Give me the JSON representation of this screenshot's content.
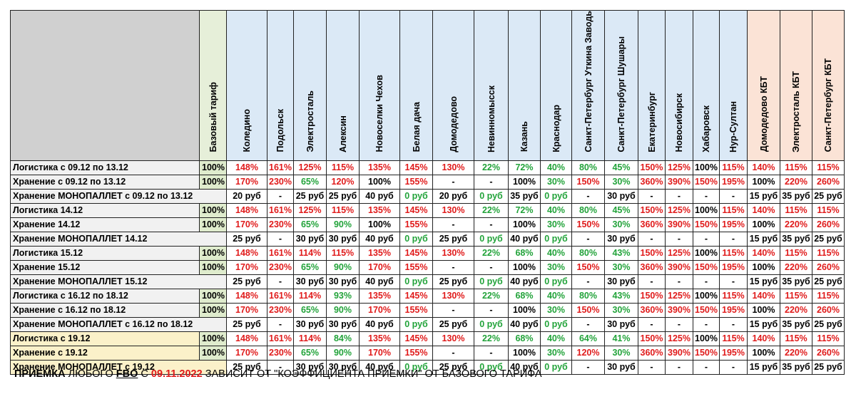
{
  "columns": [
    {
      "label": "Коледино",
      "group": "blue"
    },
    {
      "label": "Подольск",
      "group": "blue"
    },
    {
      "label": "Электросталь",
      "group": "blue"
    },
    {
      "label": "Алексин",
      "group": "blue"
    },
    {
      "label": "Новоселки Чехов",
      "group": "blue"
    },
    {
      "label": "Белая дача",
      "group": "blue"
    },
    {
      "label": "Домодедово",
      "group": "blue"
    },
    {
      "label": "Невинномысск",
      "group": "blue"
    },
    {
      "label": "Казань",
      "group": "blue"
    },
    {
      "label": "Краснодар",
      "group": "blue"
    },
    {
      "label": "Санкт-Петербург Уткина Заводь",
      "group": "blue"
    },
    {
      "label": "Санкт-Петербург Шушары",
      "group": "blue"
    },
    {
      "label": "Екатеринбург",
      "group": "blue"
    },
    {
      "label": "Новосибирск",
      "group": "blue"
    },
    {
      "label": "Хабаровск",
      "group": "blue"
    },
    {
      "label": "Нур-Султан",
      "group": "blue"
    },
    {
      "label": "Домодедово КБТ",
      "group": "peach"
    },
    {
      "label": "Электросталь КБТ",
      "group": "peach"
    },
    {
      "label": "Санкт-Петербург КБТ",
      "group": "peach"
    }
  ],
  "base_header": "Базовый тариф",
  "colors": {
    "red": "#e01b1b",
    "green": "#22a33a",
    "black": "#000000"
  },
  "rows": [
    {
      "label": "Логистика с 09.12 по 13.12",
      "base": "100%",
      "yellow": false,
      "cells": [
        [
          "148%",
          "r"
        ],
        [
          "161%",
          "r"
        ],
        [
          "125%",
          "r"
        ],
        [
          "115%",
          "r"
        ],
        [
          "135%",
          "r"
        ],
        [
          "145%",
          "r"
        ],
        [
          "130%",
          "r"
        ],
        [
          "22%",
          "g"
        ],
        [
          "72%",
          "g"
        ],
        [
          "40%",
          "g"
        ],
        [
          "80%",
          "g"
        ],
        [
          "45%",
          "g"
        ],
        [
          "150%",
          "r"
        ],
        [
          "125%",
          "r"
        ],
        [
          "100%",
          "k"
        ],
        [
          "115%",
          "r"
        ],
        [
          "140%",
          "r"
        ],
        [
          "115%",
          "r"
        ],
        [
          "115%",
          "r"
        ]
      ]
    },
    {
      "label": "Хранение с 09.12 по 13.12",
      "base": "100%",
      "yellow": false,
      "cells": [
        [
          "170%",
          "r"
        ],
        [
          "230%",
          "r"
        ],
        [
          "65%",
          "g"
        ],
        [
          "120%",
          "r"
        ],
        [
          "100%",
          "k"
        ],
        [
          "155%",
          "r"
        ],
        [
          "-",
          "k"
        ],
        [
          "-",
          "k"
        ],
        [
          "100%",
          "k"
        ],
        [
          "30%",
          "g"
        ],
        [
          "150%",
          "r"
        ],
        [
          "30%",
          "g"
        ],
        [
          "360%",
          "r"
        ],
        [
          "390%",
          "r"
        ],
        [
          "150%",
          "r"
        ],
        [
          "195%",
          "r"
        ],
        [
          "100%",
          "k"
        ],
        [
          "220%",
          "r"
        ],
        [
          "260%",
          "r"
        ]
      ]
    },
    {
      "label": "Хранение МОНОПАЛЛЕТ с 09.12 по 13.12",
      "base": null,
      "yellow": false,
      "cells": [
        [
          "20 руб",
          "k"
        ],
        [
          "-",
          "k"
        ],
        [
          "25 руб",
          "k"
        ],
        [
          "25 руб",
          "k"
        ],
        [
          "40 руб",
          "k"
        ],
        [
          "0 руб",
          "g"
        ],
        [
          "20 руб",
          "k"
        ],
        [
          "0 руб",
          "g"
        ],
        [
          "35 руб",
          "k"
        ],
        [
          "0 руб",
          "g"
        ],
        [
          "-",
          "k"
        ],
        [
          "30 руб",
          "k"
        ],
        [
          "-",
          "k"
        ],
        [
          "-",
          "k"
        ],
        [
          "-",
          "k"
        ],
        [
          "-",
          "k"
        ],
        [
          "15 руб",
          "k"
        ],
        [
          "35 руб",
          "k"
        ],
        [
          "25 руб",
          "k"
        ]
      ]
    },
    {
      "label": "Логистика 14.12",
      "base": "100%",
      "yellow": false,
      "cells": [
        [
          "148%",
          "r"
        ],
        [
          "161%",
          "r"
        ],
        [
          "125%",
          "r"
        ],
        [
          "115%",
          "r"
        ],
        [
          "135%",
          "r"
        ],
        [
          "145%",
          "r"
        ],
        [
          "130%",
          "r"
        ],
        [
          "22%",
          "g"
        ],
        [
          "72%",
          "g"
        ],
        [
          "40%",
          "g"
        ],
        [
          "80%",
          "g"
        ],
        [
          "45%",
          "g"
        ],
        [
          "150%",
          "r"
        ],
        [
          "125%",
          "r"
        ],
        [
          "100%",
          "k"
        ],
        [
          "115%",
          "r"
        ],
        [
          "140%",
          "r"
        ],
        [
          "115%",
          "r"
        ],
        [
          "115%",
          "r"
        ]
      ]
    },
    {
      "label": "Хранение 14.12",
      "base": "100%",
      "yellow": false,
      "cells": [
        [
          "170%",
          "r"
        ],
        [
          "230%",
          "r"
        ],
        [
          "65%",
          "g"
        ],
        [
          "90%",
          "g"
        ],
        [
          "100%",
          "k"
        ],
        [
          "155%",
          "r"
        ],
        [
          "-",
          "k"
        ],
        [
          "-",
          "k"
        ],
        [
          "100%",
          "k"
        ],
        [
          "30%",
          "g"
        ],
        [
          "150%",
          "r"
        ],
        [
          "30%",
          "g"
        ],
        [
          "360%",
          "r"
        ],
        [
          "390%",
          "r"
        ],
        [
          "150%",
          "r"
        ],
        [
          "195%",
          "r"
        ],
        [
          "100%",
          "k"
        ],
        [
          "220%",
          "r"
        ],
        [
          "260%",
          "r"
        ]
      ]
    },
    {
      "label": "Хранение МОНОПАЛЛЕТ 14.12",
      "base": null,
      "yellow": false,
      "cells": [
        [
          "25 руб",
          "k"
        ],
        [
          "-",
          "k"
        ],
        [
          "30 руб",
          "k"
        ],
        [
          "30 руб",
          "k"
        ],
        [
          "40 руб",
          "k"
        ],
        [
          "0 руб",
          "g"
        ],
        [
          "25 руб",
          "k"
        ],
        [
          "0 руб",
          "g"
        ],
        [
          "40 руб",
          "k"
        ],
        [
          "0 руб",
          "g"
        ],
        [
          "-",
          "k"
        ],
        [
          "30 руб",
          "k"
        ],
        [
          "-",
          "k"
        ],
        [
          "-",
          "k"
        ],
        [
          "-",
          "k"
        ],
        [
          "-",
          "k"
        ],
        [
          "15 руб",
          "k"
        ],
        [
          "35 руб",
          "k"
        ],
        [
          "25 руб",
          "k"
        ]
      ]
    },
    {
      "label": "Логистика 15.12",
      "base": "100%",
      "yellow": false,
      "cells": [
        [
          "148%",
          "r"
        ],
        [
          "161%",
          "r"
        ],
        [
          "114%",
          "r"
        ],
        [
          "115%",
          "r"
        ],
        [
          "135%",
          "r"
        ],
        [
          "145%",
          "r"
        ],
        [
          "130%",
          "r"
        ],
        [
          "22%",
          "g"
        ],
        [
          "68%",
          "g"
        ],
        [
          "40%",
          "g"
        ],
        [
          "80%",
          "g"
        ],
        [
          "43%",
          "g"
        ],
        [
          "150%",
          "r"
        ],
        [
          "125%",
          "r"
        ],
        [
          "100%",
          "k"
        ],
        [
          "115%",
          "r"
        ],
        [
          "140%",
          "r"
        ],
        [
          "115%",
          "r"
        ],
        [
          "115%",
          "r"
        ]
      ]
    },
    {
      "label": "Хранение 15.12",
      "base": "100%",
      "yellow": false,
      "cells": [
        [
          "170%",
          "r"
        ],
        [
          "230%",
          "r"
        ],
        [
          "65%",
          "g"
        ],
        [
          "90%",
          "g"
        ],
        [
          "170%",
          "r"
        ],
        [
          "155%",
          "r"
        ],
        [
          "-",
          "k"
        ],
        [
          "-",
          "k"
        ],
        [
          "100%",
          "k"
        ],
        [
          "30%",
          "g"
        ],
        [
          "150%",
          "r"
        ],
        [
          "30%",
          "g"
        ],
        [
          "360%",
          "r"
        ],
        [
          "390%",
          "r"
        ],
        [
          "150%",
          "r"
        ],
        [
          "195%",
          "r"
        ],
        [
          "100%",
          "k"
        ],
        [
          "220%",
          "r"
        ],
        [
          "260%",
          "r"
        ]
      ]
    },
    {
      "label": "Хранение МОНОПАЛЛЕТ 15.12",
      "base": null,
      "yellow": false,
      "cells": [
        [
          "25 руб",
          "k"
        ],
        [
          "-",
          "k"
        ],
        [
          "30 руб",
          "k"
        ],
        [
          "30 руб",
          "k"
        ],
        [
          "40 руб",
          "k"
        ],
        [
          "0 руб",
          "g"
        ],
        [
          "25 руб",
          "k"
        ],
        [
          "0 руб",
          "g"
        ],
        [
          "40 руб",
          "k"
        ],
        [
          "0 руб",
          "g"
        ],
        [
          "-",
          "k"
        ],
        [
          "30 руб",
          "k"
        ],
        [
          "-",
          "k"
        ],
        [
          "-",
          "k"
        ],
        [
          "-",
          "k"
        ],
        [
          "-",
          "k"
        ],
        [
          "15 руб",
          "k"
        ],
        [
          "35 руб",
          "k"
        ],
        [
          "25 руб",
          "k"
        ]
      ]
    },
    {
      "label": "Логистика с 16.12 по 18.12",
      "base": "100%",
      "yellow": false,
      "cells": [
        [
          "148%",
          "r"
        ],
        [
          "161%",
          "r"
        ],
        [
          "114%",
          "r"
        ],
        [
          "93%",
          "g"
        ],
        [
          "135%",
          "r"
        ],
        [
          "145%",
          "r"
        ],
        [
          "130%",
          "r"
        ],
        [
          "22%",
          "g"
        ],
        [
          "68%",
          "g"
        ],
        [
          "40%",
          "g"
        ],
        [
          "80%",
          "g"
        ],
        [
          "43%",
          "g"
        ],
        [
          "150%",
          "r"
        ],
        [
          "125%",
          "r"
        ],
        [
          "100%",
          "k"
        ],
        [
          "115%",
          "r"
        ],
        [
          "140%",
          "r"
        ],
        [
          "115%",
          "r"
        ],
        [
          "115%",
          "r"
        ]
      ]
    },
    {
      "label": "Хранение с 16.12 по 18.12",
      "base": "100%",
      "yellow": false,
      "cells": [
        [
          "170%",
          "r"
        ],
        [
          "230%",
          "r"
        ],
        [
          "65%",
          "g"
        ],
        [
          "90%",
          "g"
        ],
        [
          "170%",
          "r"
        ],
        [
          "155%",
          "r"
        ],
        [
          "-",
          "k"
        ],
        [
          "-",
          "k"
        ],
        [
          "100%",
          "k"
        ],
        [
          "30%",
          "g"
        ],
        [
          "150%",
          "r"
        ],
        [
          "30%",
          "g"
        ],
        [
          "360%",
          "r"
        ],
        [
          "390%",
          "r"
        ],
        [
          "150%",
          "r"
        ],
        [
          "195%",
          "r"
        ],
        [
          "100%",
          "k"
        ],
        [
          "220%",
          "r"
        ],
        [
          "260%",
          "r"
        ]
      ]
    },
    {
      "label": "Хранение МОНОПАЛЛЕТ с 16.12 по 18.12",
      "base": null,
      "yellow": false,
      "cells": [
        [
          "25 руб",
          "k"
        ],
        [
          "-",
          "k"
        ],
        [
          "30 руб",
          "k"
        ],
        [
          "30 руб",
          "k"
        ],
        [
          "40 руб",
          "k"
        ],
        [
          "0 руб",
          "g"
        ],
        [
          "25 руб",
          "k"
        ],
        [
          "0 руб",
          "g"
        ],
        [
          "40 руб",
          "k"
        ],
        [
          "0 руб",
          "g"
        ],
        [
          "-",
          "k"
        ],
        [
          "30 руб",
          "k"
        ],
        [
          "-",
          "k"
        ],
        [
          "-",
          "k"
        ],
        [
          "-",
          "k"
        ],
        [
          "-",
          "k"
        ],
        [
          "15 руб",
          "k"
        ],
        [
          "35 руб",
          "k"
        ],
        [
          "25 руб",
          "k"
        ]
      ]
    },
    {
      "label": "Логистика с 19.12",
      "base": "100%",
      "yellow": true,
      "cells": [
        [
          "148%",
          "r"
        ],
        [
          "161%",
          "r"
        ],
        [
          "114%",
          "r"
        ],
        [
          "84%",
          "g"
        ],
        [
          "135%",
          "r"
        ],
        [
          "145%",
          "r"
        ],
        [
          "130%",
          "r"
        ],
        [
          "22%",
          "g"
        ],
        [
          "68%",
          "g"
        ],
        [
          "40%",
          "g"
        ],
        [
          "64%",
          "g"
        ],
        [
          "41%",
          "g"
        ],
        [
          "150%",
          "r"
        ],
        [
          "125%",
          "r"
        ],
        [
          "100%",
          "k"
        ],
        [
          "115%",
          "r"
        ],
        [
          "140%",
          "r"
        ],
        [
          "115%",
          "r"
        ],
        [
          "115%",
          "r"
        ]
      ]
    },
    {
      "label": "Хранение с 19.12",
      "base": "100%",
      "yellow": true,
      "cells": [
        [
          "170%",
          "r"
        ],
        [
          "230%",
          "r"
        ],
        [
          "65%",
          "g"
        ],
        [
          "90%",
          "g"
        ],
        [
          "170%",
          "r"
        ],
        [
          "155%",
          "r"
        ],
        [
          "-",
          "k"
        ],
        [
          "-",
          "k"
        ],
        [
          "100%",
          "k"
        ],
        [
          "30%",
          "g"
        ],
        [
          "120%",
          "r"
        ],
        [
          "30%",
          "g"
        ],
        [
          "360%",
          "r"
        ],
        [
          "390%",
          "r"
        ],
        [
          "150%",
          "r"
        ],
        [
          "195%",
          "r"
        ],
        [
          "100%",
          "k"
        ],
        [
          "220%",
          "r"
        ],
        [
          "260%",
          "r"
        ]
      ]
    },
    {
      "label": "Хранение МОНОПАЛЛЕТ с 19.12",
      "base": null,
      "yellow": true,
      "cells": [
        [
          "25 руб",
          "k"
        ],
        [
          "-",
          "k"
        ],
        [
          "30 руб",
          "k"
        ],
        [
          "30 руб",
          "k"
        ],
        [
          "40 руб",
          "k"
        ],
        [
          "0 руб",
          "g"
        ],
        [
          "25 руб",
          "k"
        ],
        [
          "0 руб",
          "g"
        ],
        [
          "40 руб",
          "k"
        ],
        [
          "0 руб",
          "g"
        ],
        [
          "-",
          "k"
        ],
        [
          "30 руб",
          "k"
        ],
        [
          "-",
          "k"
        ],
        [
          "-",
          "k"
        ],
        [
          "-",
          "k"
        ],
        [
          "-",
          "k"
        ],
        [
          "15 руб",
          "k"
        ],
        [
          "35 руб",
          "k"
        ],
        [
          "25 руб",
          "k"
        ]
      ]
    }
  ],
  "footer": {
    "part1": "ПРИЕМКА",
    "part2": " ЛЮБОГО ",
    "part3": "FBO",
    "part4": " С ",
    "part5": "09.11.2022",
    "part6": " ЗАВИСИТ ОТ \"КОЭФФИЦИЕНТА ПРИЕМКИ\" ОТ БАЗОВОГО ТАРИФА"
  }
}
